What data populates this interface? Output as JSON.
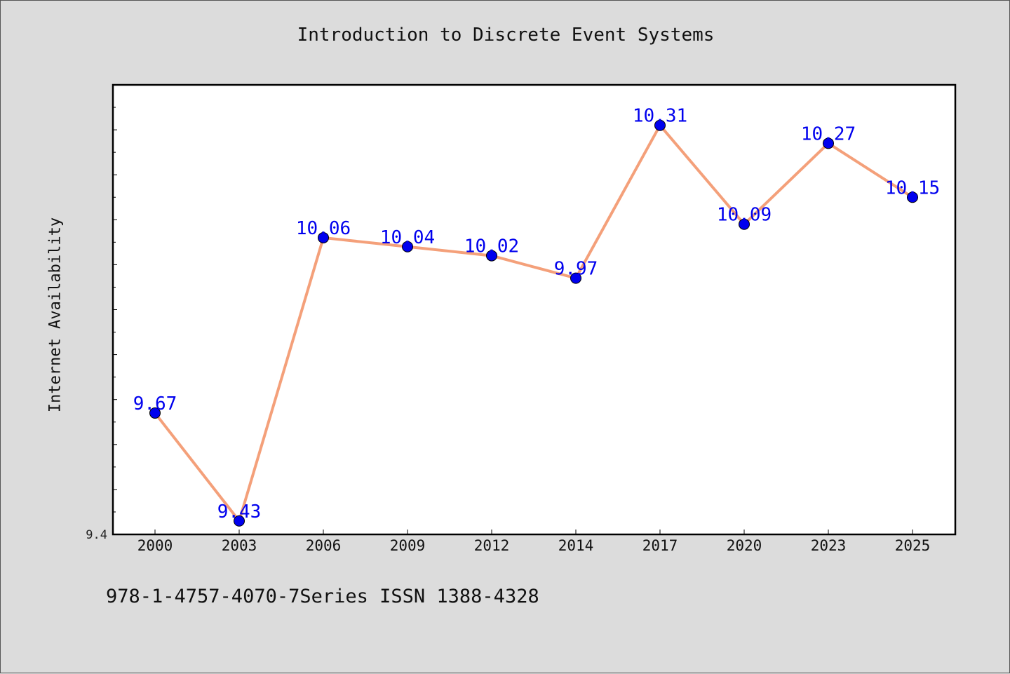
{
  "chart_data": {
    "type": "line",
    "title": "Introduction to Discrete Event Systems",
    "xlabel": "",
    "ylabel": "Internet Availability",
    "categories": [
      "2000",
      "2003",
      "2006",
      "2009",
      "2012",
      "2014",
      "2017",
      "2020",
      "2023",
      "2025"
    ],
    "series": [
      {
        "values": [
          9.67,
          9.43,
          10.06,
          10.04,
          10.02,
          9.97,
          10.31,
          10.09,
          10.27,
          10.15
        ],
        "labels": [
          "9.67",
          "9.43",
          "10.06",
          "10.04",
          "10.02",
          "9.97",
          "10.31",
          "10.09",
          "10.27",
          "10.15"
        ],
        "line_color": "#f4a07a",
        "marker_color": "#0000ee",
        "label_color": "#0000ee"
      }
    ],
    "ylim": [
      9.4,
      10.4
    ],
    "y_tick_labels": [
      "9.4"
    ],
    "grid": false,
    "legend": "none"
  },
  "footer": "978-1-4757-4070-7Series ISSN 1388-4328",
  "colors": {
    "background": "#dcdcdc",
    "plot_background": "#ffffff",
    "axis": "#000000"
  }
}
